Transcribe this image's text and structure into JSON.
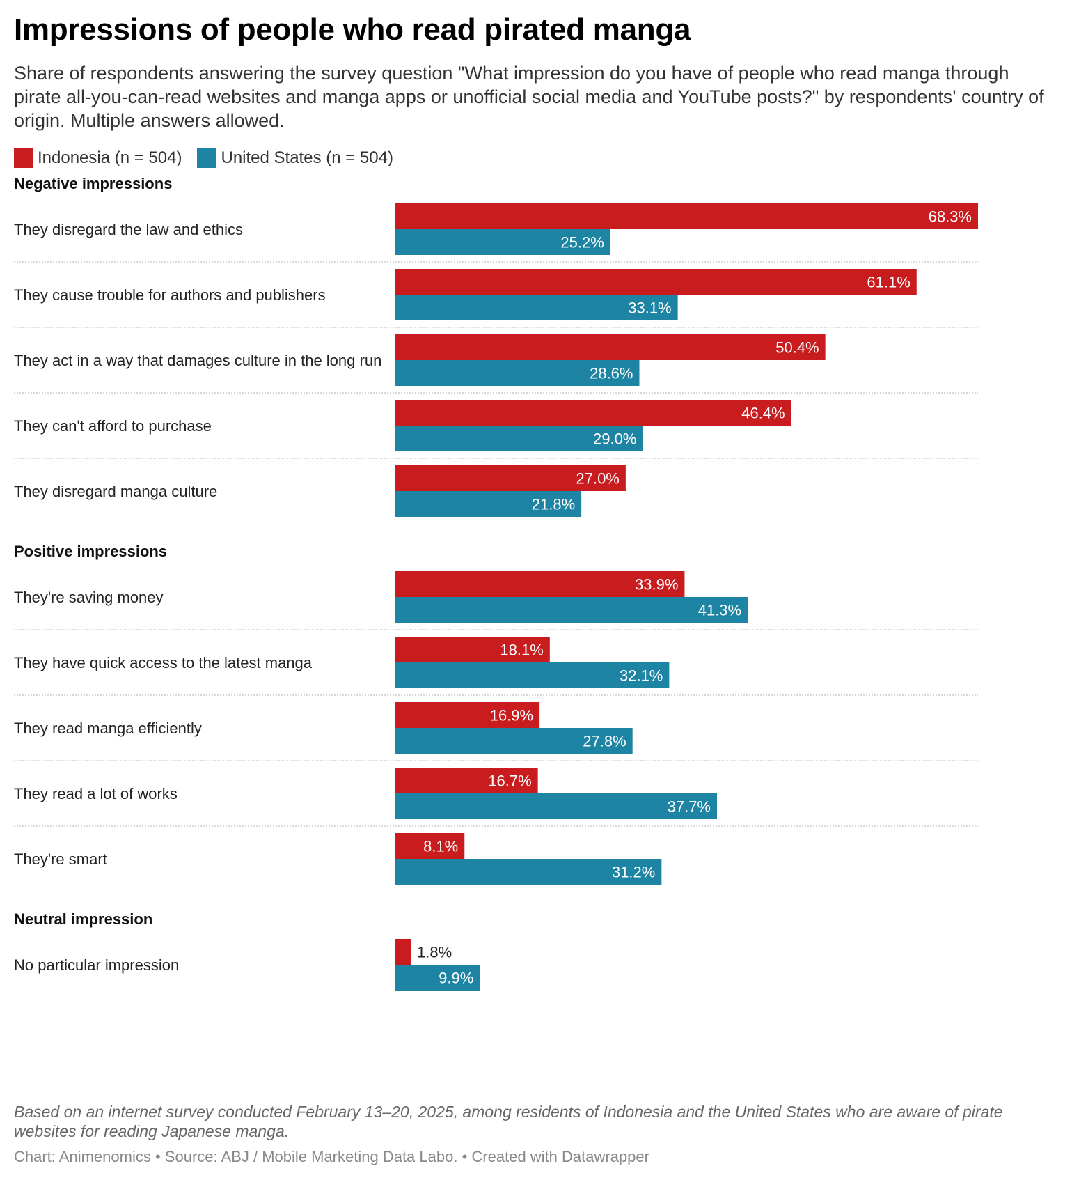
{
  "title": "Impressions of people who read pirated manga",
  "subtitle": "Share of respondents answering the survey question \"What impression do you have of people who read manga through pirate all-you-can-read websites and manga apps or unofficial social media and YouTube posts?\" by respondents' country of origin. Multiple answers allowed.",
  "legend": [
    {
      "label": "Indonesia (n = 504)",
      "color": "#c91c1f"
    },
    {
      "label": "United States (n = 504)",
      "color": "#1e84a3"
    }
  ],
  "footnote": "Based on an internet survey conducted February 13–20, 2025, among residents of Indonesia and the United States who are aware of pirate websites for reading Japanese manga.",
  "credits": {
    "chart": "Chart: Animenomics",
    "source": "Source: ABJ / Mobile Marketing Data Labo.",
    "created": "Created with Datawrapper",
    "separator": " • "
  },
  "chart_data": {
    "type": "bar",
    "orientation": "horizontal",
    "xlim": [
      0,
      68.3
    ],
    "value_suffix": "%",
    "series": [
      {
        "name": "Indonesia (n = 504)",
        "color": "#c91c1f"
      },
      {
        "name": "United States (n = 504)",
        "color": "#1e84a3"
      }
    ],
    "groups": [
      {
        "label": "Negative impressions",
        "items": [
          {
            "label": "They disregard the law and ethics",
            "values": [
              68.3,
              25.2
            ]
          },
          {
            "label": "They cause trouble for authors and publishers",
            "values": [
              61.1,
              33.1
            ]
          },
          {
            "label": "They act in a way that damages culture in the long run",
            "values": [
              50.4,
              28.6
            ]
          },
          {
            "label": "They can't afford to purchase",
            "values": [
              46.4,
              29.0
            ]
          },
          {
            "label": "They disregard manga culture",
            "values": [
              27.0,
              21.8
            ]
          }
        ]
      },
      {
        "label": "Positive impressions",
        "items": [
          {
            "label": "They're saving money",
            "values": [
              33.9,
              41.3
            ]
          },
          {
            "label": "They have quick access to the latest manga",
            "values": [
              18.1,
              32.1
            ]
          },
          {
            "label": "They read manga efficiently",
            "values": [
              16.9,
              27.8
            ]
          },
          {
            "label": "They read a lot of works",
            "values": [
              16.7,
              37.7
            ]
          },
          {
            "label": "They're smart",
            "values": [
              8.1,
              31.2
            ]
          }
        ]
      },
      {
        "label": "Neutral impression",
        "items": [
          {
            "label": "No particular impression",
            "values": [
              1.8,
              9.9
            ]
          }
        ]
      }
    ]
  }
}
